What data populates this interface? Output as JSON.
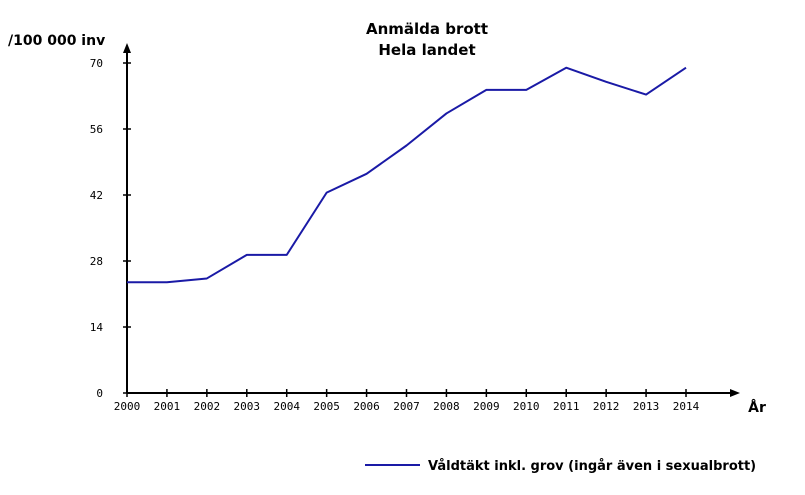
{
  "chart_data": {
    "type": "line",
    "title": "Anmälda brott",
    "subtitle": "Hela landet",
    "ylabel": "/100 000 inv",
    "xlabel": "År",
    "ylim": [
      0,
      70
    ],
    "yticks": [
      "0",
      "14",
      "28",
      "42",
      "56",
      "70"
    ],
    "x": [
      "2000",
      "2001",
      "2002",
      "2003",
      "2004",
      "2005",
      "2006",
      "2007",
      "2008",
      "2009",
      "2010",
      "2011",
      "2012",
      "2013",
      "2014"
    ],
    "series": [
      {
        "name": "Våldtäkt inkl. grov (ingår även i sexualbrott)",
        "color": "#1a1aa6",
        "values": [
          23.5,
          23.5,
          24.3,
          29.3,
          29.3,
          42.5,
          46.5,
          52.5,
          59.3,
          64.3,
          64.3,
          69.0,
          66.0,
          63.3,
          69.0
        ]
      }
    ],
    "legend_position": "bottom-right",
    "grid": false
  }
}
